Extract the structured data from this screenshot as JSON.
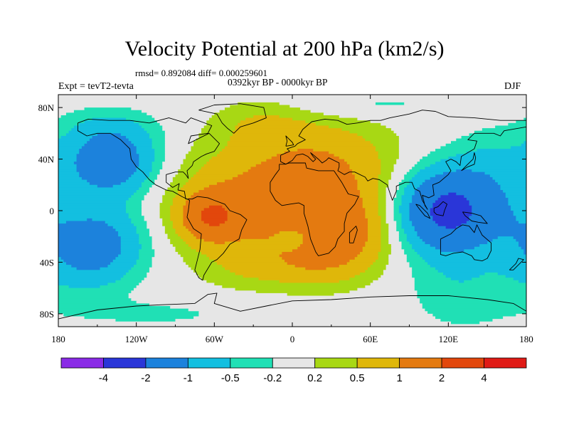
{
  "title": "Velocity Potential at 200 hPa (km2/s)",
  "stats": "rmsd= 0.892084 diff= 0.000259601",
  "period": "0392kyr BP - 0000kyr BP",
  "experiment": "Expt = tevT2-tevta",
  "season": "DJF",
  "map": {
    "projection": "cylindrical equidistant",
    "lon_range": [
      -180,
      180
    ],
    "lat_range": [
      -90,
      90
    ],
    "xticks": [
      {
        "lon": -180,
        "label": "180"
      },
      {
        "lon": -120,
        "label": "120W"
      },
      {
        "lon": -60,
        "label": "60W"
      },
      {
        "lon": 0,
        "label": "0"
      },
      {
        "lon": 60,
        "label": "60E"
      },
      {
        "lon": 120,
        "label": "120E"
      },
      {
        "lon": 180,
        "label": "180"
      }
    ],
    "yticks": [
      {
        "lat": 80,
        "label": "80N"
      },
      {
        "lat": 40,
        "label": "40N"
      },
      {
        "lat": 0,
        "label": "0"
      },
      {
        "lat": -40,
        "label": "40S"
      },
      {
        "lat": -80,
        "label": "80S"
      }
    ]
  },
  "colorbar": {
    "colors": [
      "#8a2be6",
      "#2a36d8",
      "#1c82dc",
      "#13bfe0",
      "#20e0b5",
      "#e6e6e6",
      "#a8d814",
      "#dfb70a",
      "#e47a10",
      "#e2470c",
      "#e01b16"
    ],
    "labels": [
      "-4",
      "-2",
      "-1",
      "-0.5",
      "-0.2",
      "0.2",
      "0.5",
      "1",
      "2",
      "4"
    ]
  },
  "chart_data": {
    "type": "contour-map",
    "title": "Velocity Potential at 200 hPa (km2/s)",
    "levels": [
      -4,
      -2,
      -1,
      -0.5,
      -0.2,
      0.2,
      0.5,
      1,
      2,
      4
    ],
    "background_value": 0,
    "blobs": [
      {
        "lon": -15,
        "lat": 5,
        "v": 1.25,
        "rlon": 75,
        "rlat": 45
      },
      {
        "lon": 28,
        "lat": 38,
        "v": 0.6,
        "rlon": 55,
        "rlat": 35
      },
      {
        "lon": -25,
        "lat": 68,
        "v": 0.35,
        "rlon": 35,
        "rlat": 18
      },
      {
        "lon": -63,
        "lat": -5,
        "v": 1.45,
        "rlon": 22,
        "rlat": 18
      },
      {
        "lon": 40,
        "lat": -18,
        "v": 0.9,
        "rlon": 35,
        "rlat": 28
      },
      {
        "lon": 12,
        "lat": -42,
        "v": 0.5,
        "rlon": 40,
        "rlat": 18
      },
      {
        "lon": -40,
        "lat": -45,
        "v": 0.2,
        "rlon": 30,
        "rlat": 15
      },
      {
        "lon": 120,
        "lat": 0,
        "v": -2.4,
        "rlon": 38,
        "rlat": 32
      },
      {
        "lon": 152,
        "lat": 40,
        "v": -0.35,
        "rlon": 28,
        "rlat": 25
      },
      {
        "lon": 130,
        "lat": -62,
        "v": -0.4,
        "rlon": 40,
        "rlat": 30
      },
      {
        "lon": -140,
        "lat": 38,
        "v": -1.6,
        "rlon": 35,
        "rlat": 26
      },
      {
        "lon": -140,
        "lat": 65,
        "v": -0.3,
        "rlon": 40,
        "rlat": 15
      },
      {
        "lon": -150,
        "lat": -25,
        "v": -1.3,
        "rlon": 38,
        "rlat": 30
      },
      {
        "lon": -165,
        "lat": -45,
        "v": -0.25,
        "rlon": 30,
        "rlat": 25
      },
      {
        "lon": 170,
        "lat": 0,
        "v": -0.3,
        "rlon": 25,
        "rlat": 40
      },
      {
        "lon": 60,
        "lat": 82,
        "v": -0.3,
        "rlon": 60,
        "rlat": 10
      },
      {
        "lon": -100,
        "lat": -80,
        "v": -0.25,
        "rlon": 80,
        "rlat": 12
      },
      {
        "lon": 0,
        "lat": -22,
        "v": -0.6,
        "rlon": 12,
        "rlat": 8
      }
    ]
  },
  "coastlines": [
    {
      "name": "americas",
      "pts": [
        [
          -165,
          68
        ],
        [
          -157,
          71
        ],
        [
          -141,
          70
        ],
        [
          -125,
          70
        ],
        [
          -110,
          68
        ],
        [
          -95,
          72
        ],
        [
          -82,
          68
        ],
        [
          -78,
          72
        ],
        [
          -62,
          66
        ],
        [
          -65,
          60
        ],
        [
          -78,
          58
        ],
        [
          -80,
          52
        ],
        [
          -64,
          60
        ],
        [
          -56,
          52
        ],
        [
          -60,
          46
        ],
        [
          -66,
          44
        ],
        [
          -70,
          42
        ],
        [
          -76,
          38
        ],
        [
          -77,
          35
        ],
        [
          -81,
          31
        ],
        [
          -80,
          25
        ],
        [
          -82,
          28
        ],
        [
          -84,
          30
        ],
        [
          -90,
          30
        ],
        [
          -97,
          28
        ],
        [
          -97,
          22
        ],
        [
          -92,
          18
        ],
        [
          -87,
          21
        ],
        [
          -88,
          16
        ],
        [
          -83,
          15
        ],
        [
          -82,
          9
        ],
        [
          -77,
          9
        ],
        [
          -73,
          11
        ],
        [
          -65,
          10
        ],
        [
          -60,
          8
        ],
        [
          -52,
          5
        ],
        [
          -48,
          0
        ],
        [
          -40,
          -3
        ],
        [
          -35,
          -7
        ],
        [
          -39,
          -15
        ],
        [
          -41,
          -22
        ],
        [
          -48,
          -26
        ],
        [
          -53,
          -33
        ],
        [
          -58,
          -38
        ],
        [
          -62,
          -40
        ],
        [
          -65,
          -45
        ],
        [
          -68,
          -50
        ],
        [
          -69,
          -54
        ],
        [
          -72,
          -52
        ],
        [
          -75,
          -46
        ],
        [
          -73,
          -38
        ],
        [
          -71,
          -30
        ],
        [
          -70,
          -18
        ],
        [
          -76,
          -14
        ],
        [
          -81,
          -5
        ],
        [
          -80,
          0
        ],
        [
          -79,
          8
        ],
        [
          -85,
          11
        ],
        [
          -92,
          15
        ],
        [
          -97,
          16
        ],
        [
          -105,
          20
        ],
        [
          -110,
          24
        ],
        [
          -115,
          30
        ],
        [
          -120,
          34
        ],
        [
          -124,
          40
        ],
        [
          -125,
          48
        ],
        [
          -132,
          55
        ],
        [
          -140,
          60
        ],
        [
          -150,
          60
        ],
        [
          -158,
          58
        ],
        [
          -165,
          62
        ],
        [
          -165,
          68
        ]
      ]
    },
    {
      "name": "greenland",
      "pts": [
        [
          -72,
          78
        ],
        [
          -60,
          82
        ],
        [
          -40,
          83
        ],
        [
          -22,
          80
        ],
        [
          -20,
          72
        ],
        [
          -30,
          68
        ],
        [
          -40,
          65
        ],
        [
          -45,
          60
        ],
        [
          -50,
          64
        ],
        [
          -54,
          68
        ],
        [
          -58,
          75
        ],
        [
          -72,
          78
        ]
      ]
    },
    {
      "name": "afroeurasia",
      "pts": [
        [
          -10,
          36
        ],
        [
          -6,
          36
        ],
        [
          -2,
          37
        ],
        [
          3,
          37
        ],
        [
          10,
          37
        ],
        [
          11,
          33
        ],
        [
          20,
          31
        ],
        [
          26,
          31
        ],
        [
          32,
          31
        ],
        [
          34,
          28
        ],
        [
          38,
          22
        ],
        [
          43,
          13
        ],
        [
          51,
          11
        ],
        [
          48,
          5
        ],
        [
          42,
          -2
        ],
        [
          40,
          -10
        ],
        [
          40,
          -16
        ],
        [
          35,
          -22
        ],
        [
          33,
          -28
        ],
        [
          28,
          -33
        ],
        [
          20,
          -35
        ],
        [
          18,
          -32
        ],
        [
          14,
          -22
        ],
        [
          12,
          -12
        ],
        [
          9,
          -2
        ],
        [
          9,
          4
        ],
        [
          5,
          6
        ],
        [
          -2,
          5
        ],
        [
          -8,
          4
        ],
        [
          -13,
          8
        ],
        [
          -17,
          15
        ],
        [
          -17,
          22
        ],
        [
          -13,
          28
        ],
        [
          -10,
          32
        ],
        [
          -10,
          36
        ]
      ]
    },
    {
      "name": "eurasia",
      "pts": [
        [
          -9,
          43
        ],
        [
          -9,
          38
        ],
        [
          -5,
          36
        ],
        [
          0,
          39
        ],
        [
          3,
          43
        ],
        [
          8,
          44
        ],
        [
          12,
          42
        ],
        [
          16,
          38
        ],
        [
          18,
          40
        ],
        [
          16,
          42
        ],
        [
          14,
          45
        ],
        [
          20,
          40
        ],
        [
          23,
          37
        ],
        [
          26,
          39
        ],
        [
          28,
          41
        ],
        [
          36,
          37
        ],
        [
          36,
          34
        ],
        [
          35,
          31
        ],
        [
          40,
          28
        ],
        [
          44,
          30
        ],
        [
          48,
          30
        ],
        [
          56,
          26
        ],
        [
          58,
          23
        ],
        [
          62,
          25
        ],
        [
          67,
          24
        ],
        [
          73,
          20
        ],
        [
          77,
          8
        ],
        [
          80,
          15
        ],
        [
          80,
          19
        ],
        [
          87,
          22
        ],
        [
          92,
          22
        ],
        [
          94,
          17
        ],
        [
          98,
          15
        ],
        [
          100,
          8
        ],
        [
          104,
          1
        ],
        [
          102,
          4
        ],
        [
          100,
          12
        ],
        [
          105,
          10
        ],
        [
          109,
          12
        ],
        [
          108,
          20
        ],
        [
          113,
          22
        ],
        [
          120,
          28
        ],
        [
          122,
          31
        ],
        [
          118,
          38
        ],
        [
          122,
          40
        ],
        [
          126,
          38
        ],
        [
          129,
          35
        ],
        [
          130,
          42
        ],
        [
          140,
          48
        ],
        [
          142,
          54
        ],
        [
          135,
          55
        ],
        [
          140,
          60
        ],
        [
          155,
          60
        ],
        [
          160,
          58
        ],
        [
          163,
          62
        ],
        [
          180,
          65
        ],
        [
          180,
          70
        ],
        [
          160,
          70
        ],
        [
          140,
          72
        ],
        [
          120,
          73
        ],
        [
          110,
          77
        ],
        [
          100,
          78
        ],
        [
          90,
          75
        ],
        [
          75,
          72
        ],
        [
          68,
          70
        ],
        [
          60,
          70
        ],
        [
          50,
          68
        ],
        [
          42,
          67
        ],
        [
          35,
          70
        ],
        [
          25,
          71
        ],
        [
          15,
          69
        ],
        [
          8,
          63
        ],
        [
          5,
          58
        ],
        [
          10,
          55
        ],
        [
          8,
          54
        ],
        [
          4,
          52
        ],
        [
          2,
          50
        ],
        [
          -4,
          48
        ],
        [
          -2,
          46
        ],
        [
          -9,
          43
        ]
      ]
    },
    {
      "name": "gb",
      "pts": [
        [
          -5,
          50
        ],
        [
          1,
          51
        ],
        [
          0,
          53
        ],
        [
          -3,
          56
        ],
        [
          -5,
          58
        ],
        [
          -4,
          54
        ],
        [
          -5,
          50
        ]
      ]
    },
    {
      "name": "madagascar",
      "pts": [
        [
          44,
          -25
        ],
        [
          47,
          -25
        ],
        [
          50,
          -15
        ],
        [
          49,
          -12
        ],
        [
          44,
          -17
        ],
        [
          44,
          -25
        ]
      ]
    },
    {
      "name": "japan",
      "pts": [
        [
          130,
          31
        ],
        [
          135,
          34
        ],
        [
          140,
          36
        ],
        [
          141,
          41
        ],
        [
          140,
          45
        ],
        [
          139,
          40
        ],
        [
          134,
          35
        ],
        [
          130,
          31
        ]
      ]
    },
    {
      "name": "borneo",
      "pts": [
        [
          109,
          2
        ],
        [
          112,
          3
        ],
        [
          116,
          7
        ],
        [
          119,
          5
        ],
        [
          117,
          0
        ],
        [
          116,
          -4
        ],
        [
          111,
          -3
        ],
        [
          109,
          -1
        ],
        [
          109,
          2
        ]
      ]
    },
    {
      "name": "sumatra",
      "pts": [
        [
          95,
          5
        ],
        [
          98,
          4
        ],
        [
          104,
          -2
        ],
        [
          106,
          -6
        ],
        [
          102,
          -4
        ],
        [
          98,
          1
        ],
        [
          95,
          5
        ]
      ]
    },
    {
      "name": "newguinea",
      "pts": [
        [
          131,
          -1
        ],
        [
          138,
          -2
        ],
        [
          145,
          -4
        ],
        [
          150,
          -10
        ],
        [
          143,
          -9
        ],
        [
          138,
          -8
        ],
        [
          133,
          -4
        ],
        [
          131,
          -1
        ]
      ]
    },
    {
      "name": "australia",
      "pts": [
        [
          114,
          -22
        ],
        [
          114,
          -34
        ],
        [
          118,
          -35
        ],
        [
          124,
          -33
        ],
        [
          131,
          -32
        ],
        [
          138,
          -35
        ],
        [
          140,
          -38
        ],
        [
          146,
          -39
        ],
        [
          150,
          -37
        ],
        [
          153,
          -31
        ],
        [
          153,
          -25
        ],
        [
          146,
          -19
        ],
        [
          142,
          -11
        ],
        [
          140,
          -17
        ],
        [
          136,
          -12
        ],
        [
          131,
          -11
        ],
        [
          126,
          -14
        ],
        [
          122,
          -18
        ],
        [
          114,
          -22
        ]
      ]
    },
    {
      "name": "newzealand",
      "pts": [
        [
          167,
          -46
        ],
        [
          172,
          -41
        ],
        [
          174,
          -37
        ],
        [
          178,
          -38
        ],
        [
          174,
          -42
        ],
        [
          170,
          -46
        ],
        [
          167,
          -46
        ]
      ]
    },
    {
      "name": "antarctica",
      "pts": [
        [
          -180,
          -84
        ],
        [
          -150,
          -77
        ],
        [
          -120,
          -74
        ],
        [
          -100,
          -73
        ],
        [
          -75,
          -72
        ],
        [
          -65,
          -65
        ],
        [
          -58,
          -64
        ],
        [
          -60,
          -72
        ],
        [
          -40,
          -78
        ],
        [
          -20,
          -74
        ],
        [
          0,
          -70
        ],
        [
          30,
          -69
        ],
        [
          60,
          -67
        ],
        [
          90,
          -66
        ],
        [
          120,
          -66
        ],
        [
          150,
          -69
        ],
        [
          170,
          -72
        ],
        [
          180,
          -78
        ],
        [
          180,
          -84
        ]
      ]
    }
  ]
}
